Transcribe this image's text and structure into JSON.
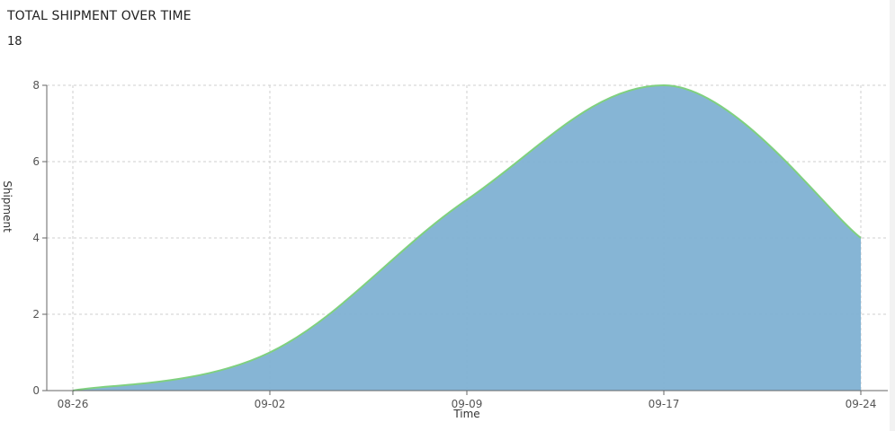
{
  "header": {
    "title": "TOTAL SHIPMENT OVER TIME",
    "total": "18"
  },
  "chart_data": {
    "type": "area",
    "x": [
      "08-26",
      "09-02",
      "09-09",
      "09-17",
      "09-24"
    ],
    "values": [
      0,
      1,
      5,
      8,
      4
    ],
    "xlabel": "Time",
    "ylabel": "Shipment",
    "ylim": [
      0,
      8
    ],
    "yticks": [
      "0",
      "2",
      "4",
      "6",
      "8"
    ],
    "grid": true,
    "fill_color": "#80b1d3",
    "line_color": "#7fd07f"
  }
}
